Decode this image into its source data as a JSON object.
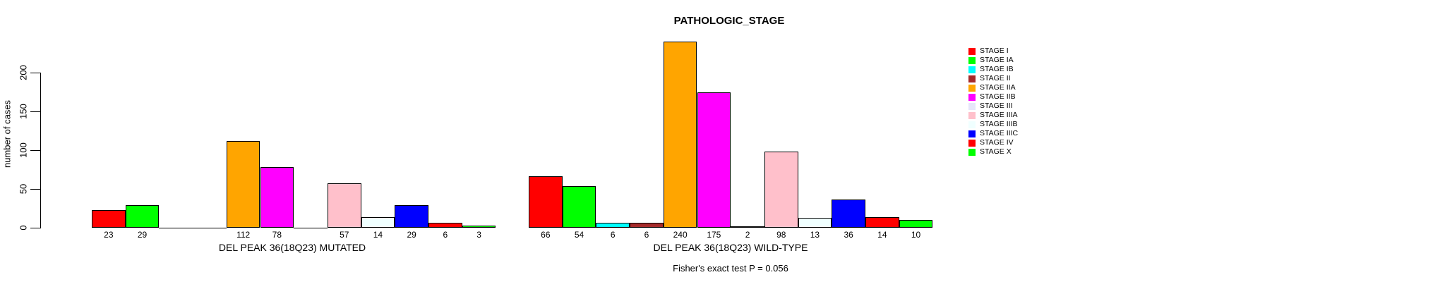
{
  "title": "PATHOLOGIC_STAGE",
  "chart_data": {
    "type": "bar",
    "title": "PATHOLOGIC_STAGE",
    "ylabel": "number of cases",
    "yticks": [
      0,
      50,
      100,
      150,
      200
    ],
    "ylim": [
      0,
      240
    ],
    "grid": false,
    "legend_position": "right",
    "bar_value_labels": true,
    "categories": [
      "STAGE I",
      "STAGE IA",
      "STAGE IB",
      "STAGE II",
      "STAGE IIA",
      "STAGE IIB",
      "STAGE III",
      "STAGE IIIA",
      "STAGE IIIB",
      "STAGE IIIC",
      "STAGE IV",
      "STAGE X"
    ],
    "colors": [
      "#FF0000",
      "#00FF00",
      "#00FFFF",
      "#A52A2A",
      "#FFA500",
      "#FF00FF",
      "#E6E6FA",
      "#FFC0CB",
      "#F0FFFF",
      "#0000FF",
      "#FF0000",
      "#00FF00"
    ],
    "series": [
      {
        "name": "DEL PEAK 36(18Q23) MUTATED",
        "values": [
          23,
          29,
          0,
          0,
          112,
          78,
          0,
          57,
          14,
          29,
          6,
          3
        ]
      },
      {
        "name": "DEL PEAK 36(18Q23) WILD-TYPE",
        "values": [
          66,
          54,
          6,
          6,
          240,
          175,
          2,
          98,
          13,
          36,
          14,
          10
        ]
      }
    ],
    "footnote": "Fisher's exact test P = 0.056"
  },
  "legend": {
    "items": [
      {
        "label": "STAGE I",
        "color": "#FF0000"
      },
      {
        "label": "STAGE IA",
        "color": "#00FF00"
      },
      {
        "label": "STAGE IB",
        "color": "#00FFFF"
      },
      {
        "label": "STAGE II",
        "color": "#A52A2A"
      },
      {
        "label": "STAGE IIA",
        "color": "#FFA500"
      },
      {
        "label": "STAGE IIB",
        "color": "#FF00FF"
      },
      {
        "label": "STAGE III",
        "color": "#E6E6FA"
      },
      {
        "label": "STAGE IIIA",
        "color": "#FFC0CB"
      },
      {
        "label": "STAGE IIIB",
        "color": "#F0FFFF"
      },
      {
        "label": "STAGE IIIC",
        "color": "#0000FF"
      },
      {
        "label": "STAGE IV",
        "color": "#FF0000"
      },
      {
        "label": "STAGE X",
        "color": "#00FF00"
      }
    ]
  }
}
